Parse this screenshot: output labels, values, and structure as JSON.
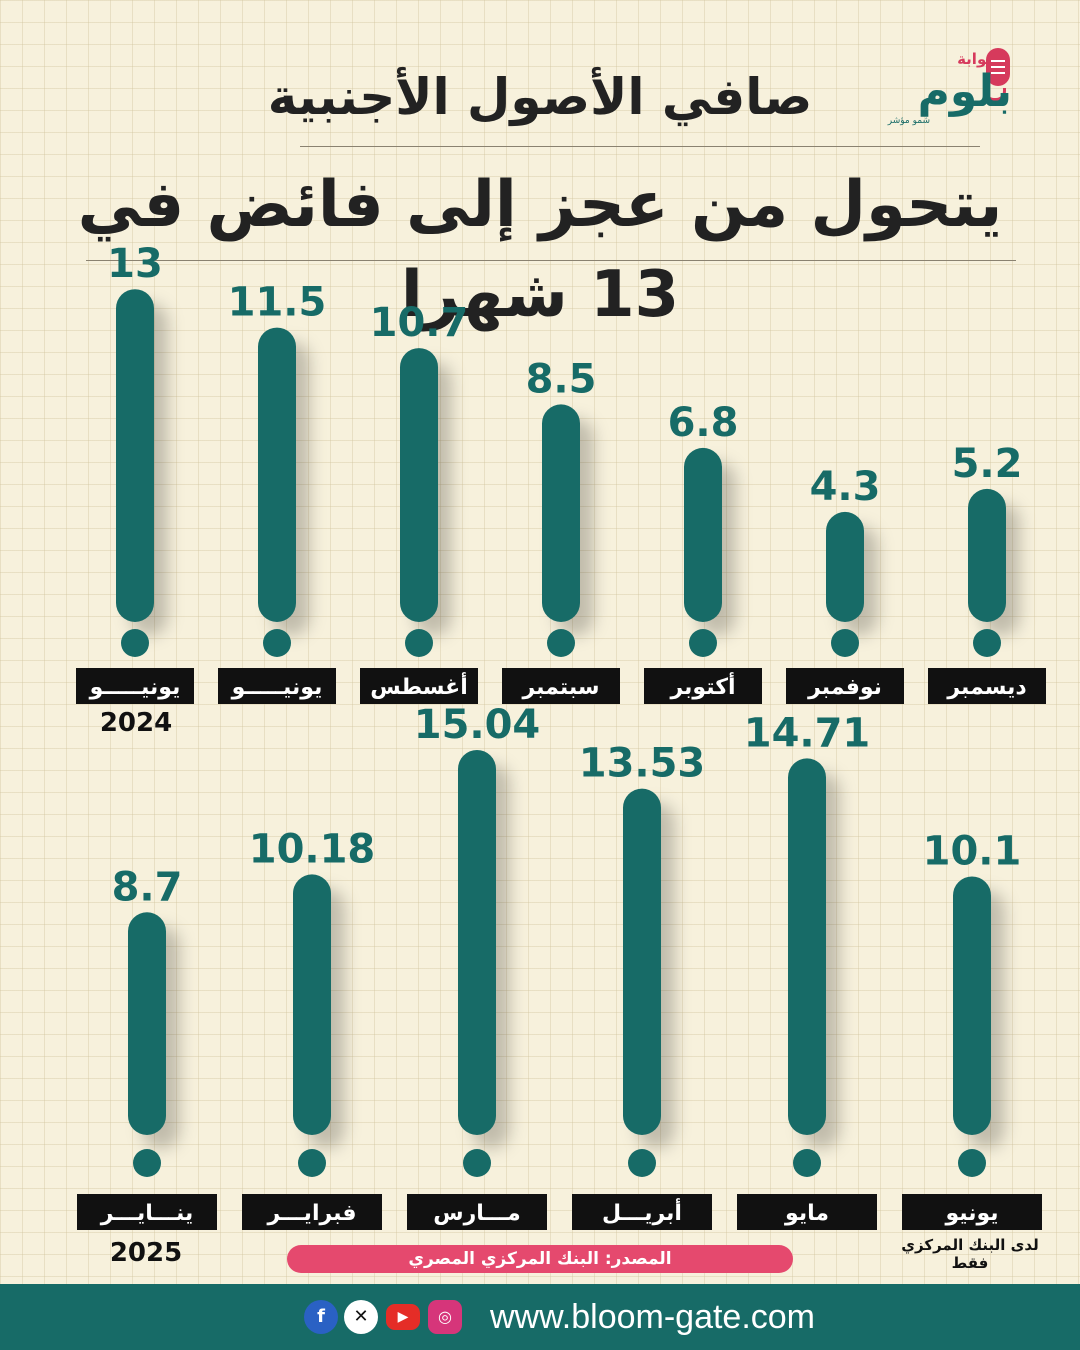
{
  "header": {
    "title_line1": "صافي الأصول الأجنبية",
    "title_line2": "يتحول من عجز إلى فائض في 13 شهرا"
  },
  "logo": {
    "top_text": "بوابة",
    "main_text": "بلوم",
    "sub_text": "شمو مؤشر",
    "colors": {
      "pink": "#d63a5c",
      "teal": "#176b67"
    }
  },
  "chart_data": {
    "type": "bar",
    "bar_style": "exclamation-mark",
    "colors": {
      "bar": "#176b67",
      "label_bg": "#111111",
      "label_text": "#ffffff"
    },
    "rows": [
      {
        "year": "2024",
        "categories": [
          "يونيـــــو",
          "يونيـــــو",
          "أغسطس",
          "سبتمبر",
          "أكتوبر",
          "نوفمبر",
          "ديسمبر"
        ],
        "values": [
          "13",
          "11.5",
          "10.7",
          "8.5",
          "6.8",
          "4.3",
          "5.2"
        ]
      },
      {
        "year": "2025",
        "categories": [
          "ينـــايـــر",
          "فبرايـــر",
          "مـــارس",
          "أبريـــل",
          "مايو",
          "يونيو"
        ],
        "values": [
          "8.7",
          "10.18",
          "15.04",
          "13.53",
          "14.71",
          "10.1"
        ]
      }
    ]
  },
  "source_text": "المصدر: البنك المركزي المصري",
  "note_text": "لدى البنك المركزي فقط",
  "footer": {
    "url": "www.bloom-gate.com",
    "social_icons": [
      "facebook-icon",
      "x-icon",
      "youtube-icon",
      "instagram-icon"
    ],
    "color": "#176b67"
  }
}
